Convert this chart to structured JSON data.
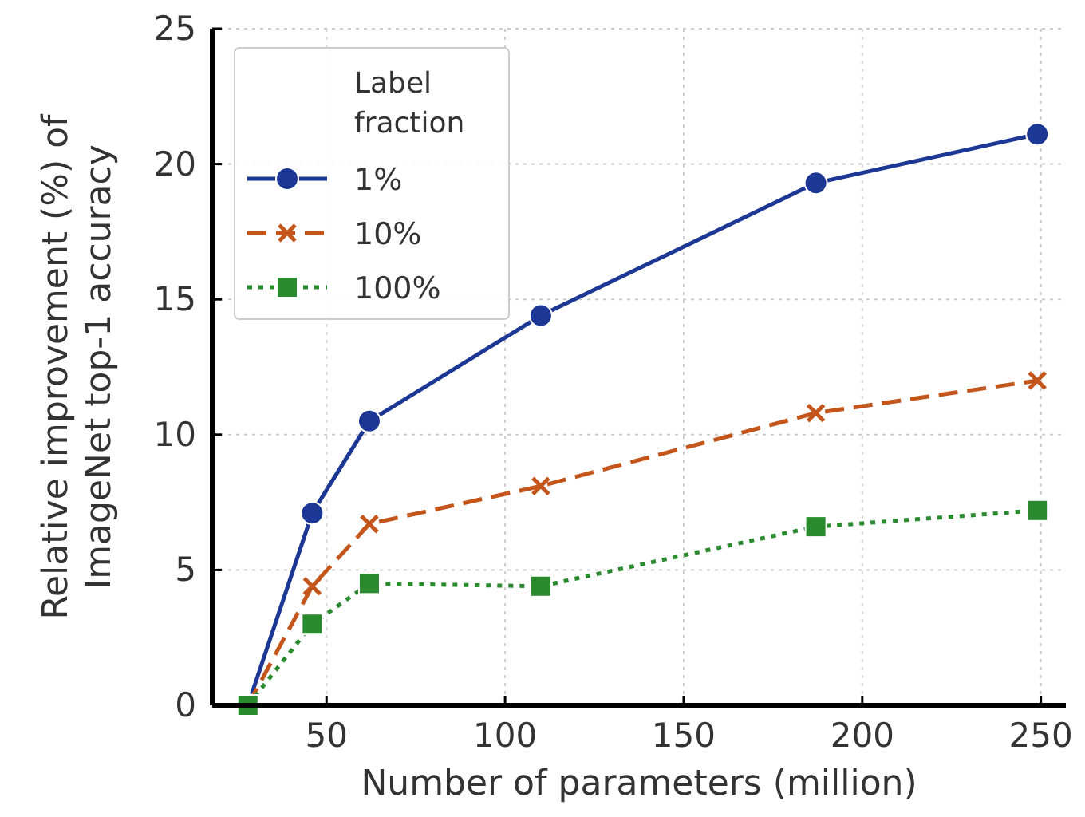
{
  "chart_data": {
    "type": "line",
    "xlabel": "Number of parameters (million)",
    "ylabel": "Relative improvement (%) of\nImageNet top-1 accuracy",
    "legend_title": "Label fraction",
    "x": [
      28,
      46,
      62,
      110,
      187,
      249
    ],
    "series": [
      {
        "name": "1%",
        "color": "#1c3794",
        "values": [
          0,
          7.1,
          10.5,
          14.4,
          19.3,
          21.1
        ],
        "marker": "circle",
        "line_style": "solid"
      },
      {
        "name": "10%",
        "color": "#c4561c",
        "values": [
          0,
          4.4,
          6.7,
          8.1,
          10.8,
          12.0
        ],
        "marker": "cross",
        "line_style": "dashed"
      },
      {
        "name": "100%",
        "color": "#2a8a2e",
        "values": [
          0,
          3.0,
          4.5,
          4.4,
          6.6,
          7.2
        ],
        "marker": "square",
        "line_style": "dotted"
      }
    ],
    "xlim": [
      18,
      257
    ],
    "xticks": [
      50,
      100,
      150,
      200,
      250
    ],
    "ylim": [
      0,
      25
    ],
    "yticks": [
      0,
      5,
      10,
      15,
      20,
      25
    ],
    "grid": true,
    "legend": "top left"
  }
}
